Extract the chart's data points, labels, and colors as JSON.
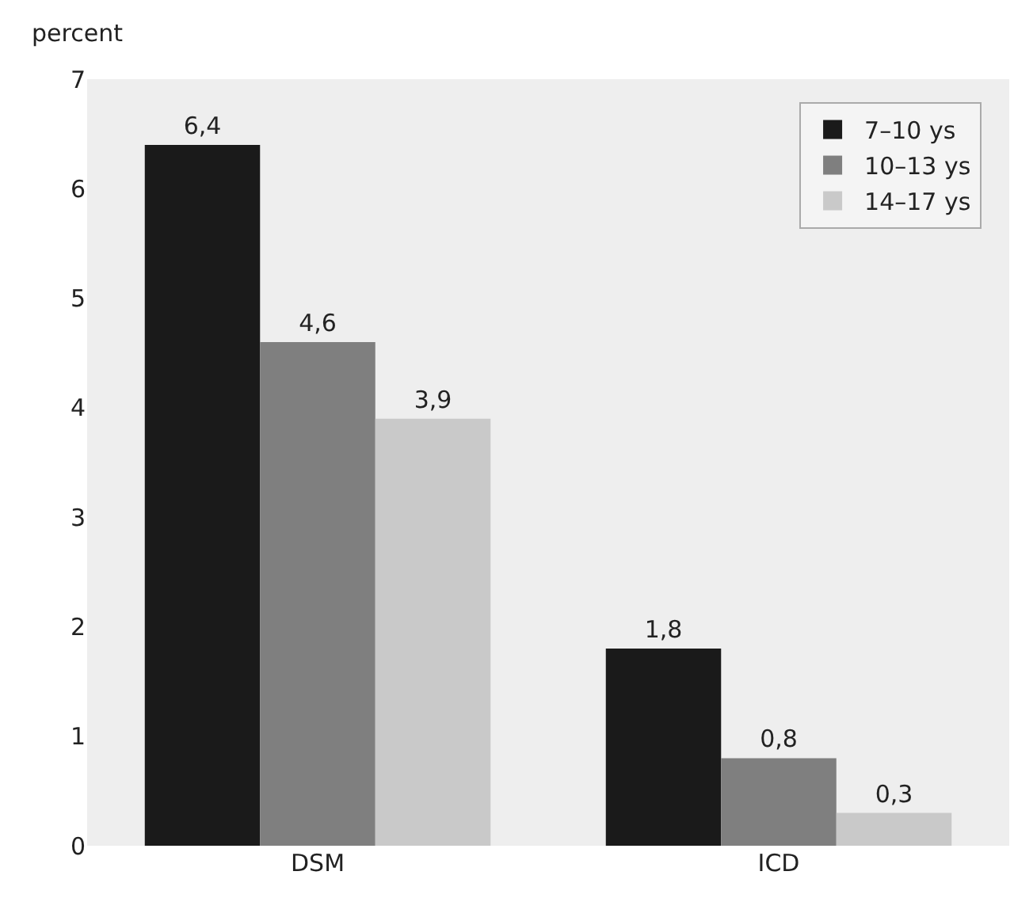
{
  "chart_data": {
    "type": "bar",
    "ylabel": "percent",
    "categories": [
      "DSM",
      "ICD"
    ],
    "series": [
      {
        "name": "7–10 ys",
        "color": "#1a1a1a",
        "values": [
          6.4,
          1.8
        ],
        "value_labels": [
          "6,4",
          "1,8"
        ]
      },
      {
        "name": "10–13 ys",
        "color": "#7f7f7f",
        "values": [
          4.6,
          0.8
        ],
        "value_labels": [
          "4,6",
          "0,8"
        ]
      },
      {
        "name": "14–17 ys",
        "color": "#c9c9c9",
        "values": [
          3.9,
          0.3
        ],
        "value_labels": [
          "3,9",
          "0,3"
        ]
      }
    ],
    "ylim": [
      0,
      7
    ],
    "yticks": [
      0,
      1,
      2,
      3,
      4,
      5,
      6,
      7
    ],
    "grid": false,
    "legend": "top right"
  }
}
